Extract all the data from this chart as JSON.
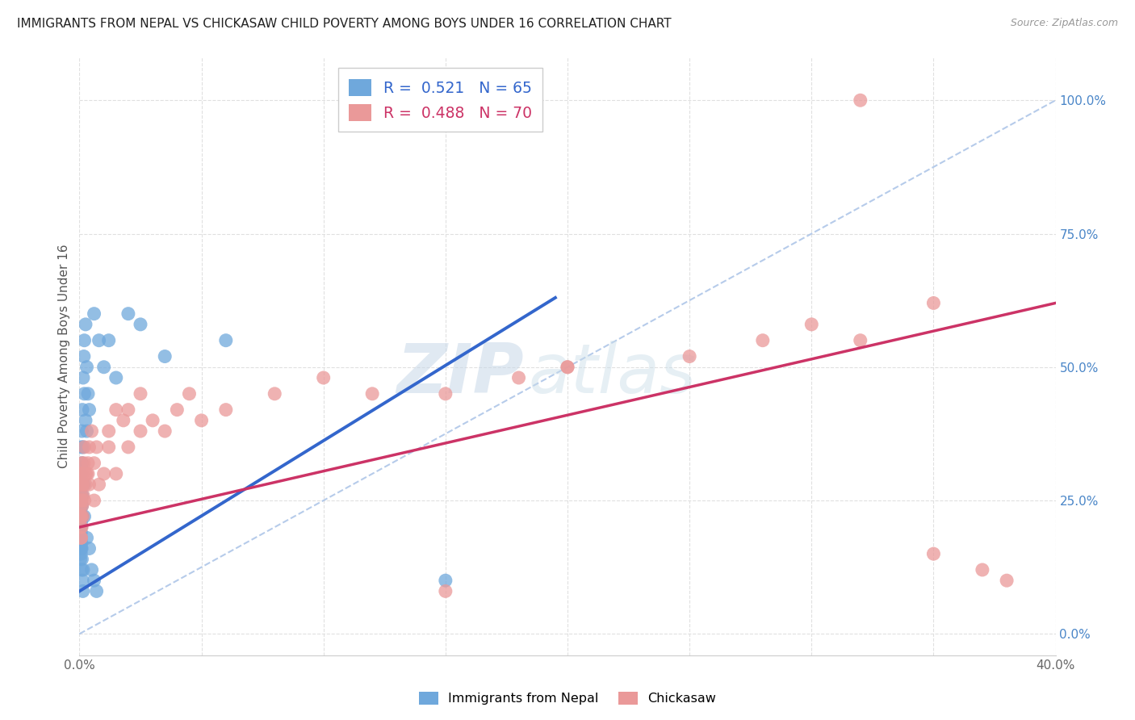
{
  "title": "IMMIGRANTS FROM NEPAL VS CHICKASAW CHILD POVERTY AMONG BOYS UNDER 16 CORRELATION CHART",
  "source": "Source: ZipAtlas.com",
  "ylabel": "Child Poverty Among Boys Under 16",
  "x_min": 0.0,
  "x_max": 0.4,
  "y_min": -0.04,
  "y_max": 1.08,
  "x_ticks": [
    0.0,
    0.05,
    0.1,
    0.15,
    0.2,
    0.25,
    0.3,
    0.35,
    0.4
  ],
  "x_tick_labels": [
    "0.0%",
    "",
    "",
    "",
    "",
    "",
    "",
    "",
    "40.0%"
  ],
  "y_ticks_right": [
    0.0,
    0.25,
    0.5,
    0.75,
    1.0
  ],
  "y_tick_labels_right": [
    "0.0%",
    "25.0%",
    "50.0%",
    "75.0%",
    "100.0%"
  ],
  "nepal_color": "#6fa8dc",
  "chickasaw_color": "#ea9999",
  "nepal_line_color": "#3366cc",
  "chickasaw_line_color": "#cc3366",
  "nepal_R": 0.521,
  "nepal_N": 65,
  "chickasaw_R": 0.488,
  "chickasaw_N": 70,
  "nepal_scatter_x": [
    0.0002,
    0.0003,
    0.0004,
    0.0005,
    0.0006,
    0.0003,
    0.0004,
    0.0005,
    0.0006,
    0.0007,
    0.0004,
    0.0005,
    0.0006,
    0.0007,
    0.0008,
    0.0004,
    0.0005,
    0.0006,
    0.0007,
    0.0005,
    0.0006,
    0.0007,
    0.0008,
    0.0009,
    0.001,
    0.0008,
    0.0009,
    0.001,
    0.0011,
    0.0012,
    0.0009,
    0.001,
    0.0012,
    0.0014,
    0.0015,
    0.001,
    0.0012,
    0.0015,
    0.0018,
    0.002,
    0.0015,
    0.0018,
    0.002,
    0.0025,
    0.003,
    0.002,
    0.0025,
    0.003,
    0.0035,
    0.004,
    0.003,
    0.004,
    0.005,
    0.006,
    0.007,
    0.006,
    0.008,
    0.01,
    0.012,
    0.015,
    0.02,
    0.025,
    0.035,
    0.06,
    0.15
  ],
  "nepal_scatter_y": [
    0.2,
    0.22,
    0.18,
    0.24,
    0.16,
    0.25,
    0.2,
    0.22,
    0.18,
    0.26,
    0.14,
    0.16,
    0.19,
    0.21,
    0.17,
    0.23,
    0.28,
    0.15,
    0.25,
    0.3,
    0.18,
    0.2,
    0.22,
    0.16,
    0.24,
    0.35,
    0.28,
    0.32,
    0.26,
    0.22,
    0.12,
    0.14,
    0.1,
    0.08,
    0.12,
    0.38,
    0.42,
    0.35,
    0.28,
    0.22,
    0.48,
    0.52,
    0.45,
    0.4,
    0.38,
    0.55,
    0.58,
    0.5,
    0.45,
    0.42,
    0.18,
    0.16,
    0.12,
    0.1,
    0.08,
    0.6,
    0.55,
    0.5,
    0.55,
    0.48,
    0.6,
    0.58,
    0.52,
    0.55,
    0.1
  ],
  "chickasaw_scatter_x": [
    0.0003,
    0.0004,
    0.0005,
    0.0006,
    0.0007,
    0.0005,
    0.0006,
    0.0007,
    0.0008,
    0.0009,
    0.0007,
    0.0008,
    0.0009,
    0.001,
    0.0011,
    0.0009,
    0.001,
    0.0012,
    0.0014,
    0.0015,
    0.0012,
    0.0015,
    0.0018,
    0.002,
    0.0025,
    0.002,
    0.0025,
    0.003,
    0.0035,
    0.004,
    0.0035,
    0.004,
    0.005,
    0.006,
    0.007,
    0.006,
    0.008,
    0.01,
    0.012,
    0.015,
    0.012,
    0.015,
    0.018,
    0.02,
    0.025,
    0.02,
    0.025,
    0.03,
    0.035,
    0.04,
    0.045,
    0.05,
    0.06,
    0.08,
    0.1,
    0.12,
    0.15,
    0.18,
    0.2,
    0.25,
    0.28,
    0.3,
    0.32,
    0.35,
    0.37,
    0.38,
    0.35,
    0.2,
    0.15,
    0.32
  ],
  "chickasaw_scatter_y": [
    0.22,
    0.24,
    0.2,
    0.18,
    0.26,
    0.28,
    0.22,
    0.25,
    0.3,
    0.2,
    0.18,
    0.22,
    0.25,
    0.28,
    0.24,
    0.32,
    0.3,
    0.28,
    0.22,
    0.26,
    0.3,
    0.28,
    0.32,
    0.35,
    0.3,
    0.25,
    0.28,
    0.3,
    0.32,
    0.28,
    0.3,
    0.35,
    0.38,
    0.32,
    0.35,
    0.25,
    0.28,
    0.3,
    0.35,
    0.3,
    0.38,
    0.42,
    0.4,
    0.35,
    0.38,
    0.42,
    0.45,
    0.4,
    0.38,
    0.42,
    0.45,
    0.4,
    0.42,
    0.45,
    0.48,
    0.45,
    0.45,
    0.48,
    0.5,
    0.52,
    0.55,
    0.58,
    0.55,
    0.15,
    0.12,
    0.1,
    0.62,
    0.5,
    0.08,
    1.0
  ],
  "nepal_line_x0": 0.0,
  "nepal_line_x1": 0.195,
  "nepal_line_y0": 0.08,
  "nepal_line_y1": 0.63,
  "chickasaw_line_x0": 0.0,
  "chickasaw_line_x1": 0.4,
  "chickasaw_line_y0": 0.2,
  "chickasaw_line_y1": 0.62,
  "diag_color": "#aec6e8",
  "watermark_zip": "ZIP",
  "watermark_atlas": "atlas",
  "background_color": "#ffffff",
  "grid_color": "#e0e0e0",
  "title_color": "#222222",
  "source_color": "#999999",
  "right_label_color": "#4a86c8",
  "left_label_color": "#555555"
}
